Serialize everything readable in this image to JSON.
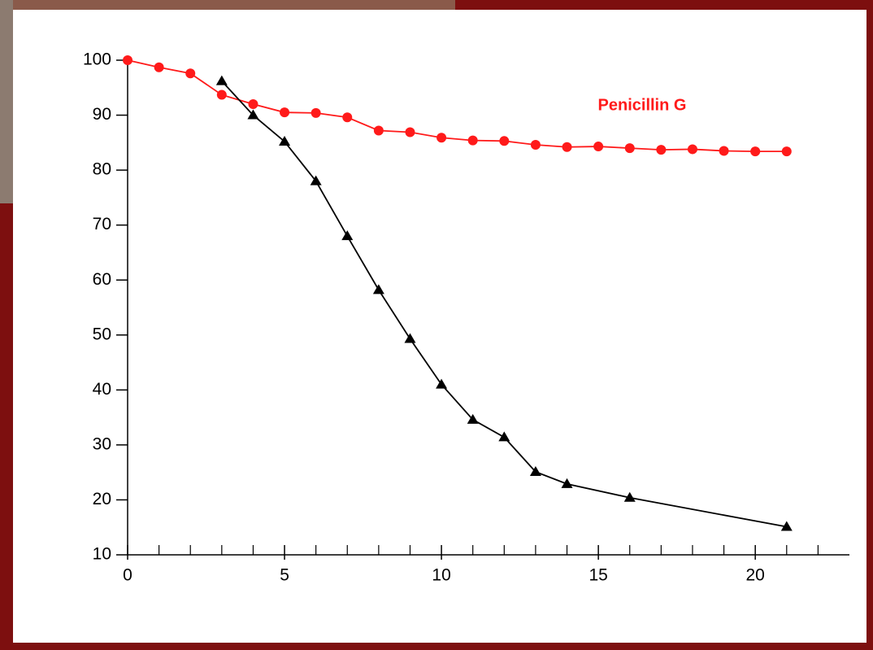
{
  "chart_data": {
    "type": "line",
    "series": [
      {
        "name": "Penicillin G",
        "color": "#ff1a1a",
        "marker": "circle",
        "x": [
          0,
          1,
          2,
          3,
          4,
          5,
          6,
          7,
          8,
          9,
          10,
          11,
          12,
          13,
          14,
          15,
          16,
          17,
          18,
          19,
          20,
          21
        ],
        "values": [
          100,
          98.7,
          97.6,
          93.7,
          92.0,
          90.5,
          90.4,
          89.6,
          87.2,
          86.9,
          85.9,
          85.4,
          85.3,
          84.6,
          84.2,
          84.3,
          84.0,
          83.7,
          83.8,
          83.5,
          83.4,
          83.4
        ]
      },
      {
        "color": "#000000",
        "marker": "triangle",
        "x": [
          3,
          4,
          5,
          6,
          7,
          8,
          9,
          10,
          11,
          12,
          13,
          14,
          16,
          21
        ],
        "values": [
          96.2,
          90.0,
          85.2,
          78.0,
          68.0,
          58.2,
          49.3,
          41.0,
          34.6,
          31.4,
          25.1,
          22.9,
          20.4,
          15.1
        ]
      }
    ],
    "xlim": [
      0,
      23
    ],
    "xticks": [
      0,
      5,
      10,
      15,
      20
    ],
    "xminorticks": [
      1,
      2,
      3,
      4,
      6,
      7,
      8,
      9,
      11,
      12,
      13,
      14,
      16,
      17,
      18,
      19,
      21,
      22
    ],
    "ylim": [
      10,
      100
    ],
    "yticks": [
      10,
      20,
      30,
      40,
      50,
      60,
      70,
      80,
      90,
      100
    ]
  }
}
